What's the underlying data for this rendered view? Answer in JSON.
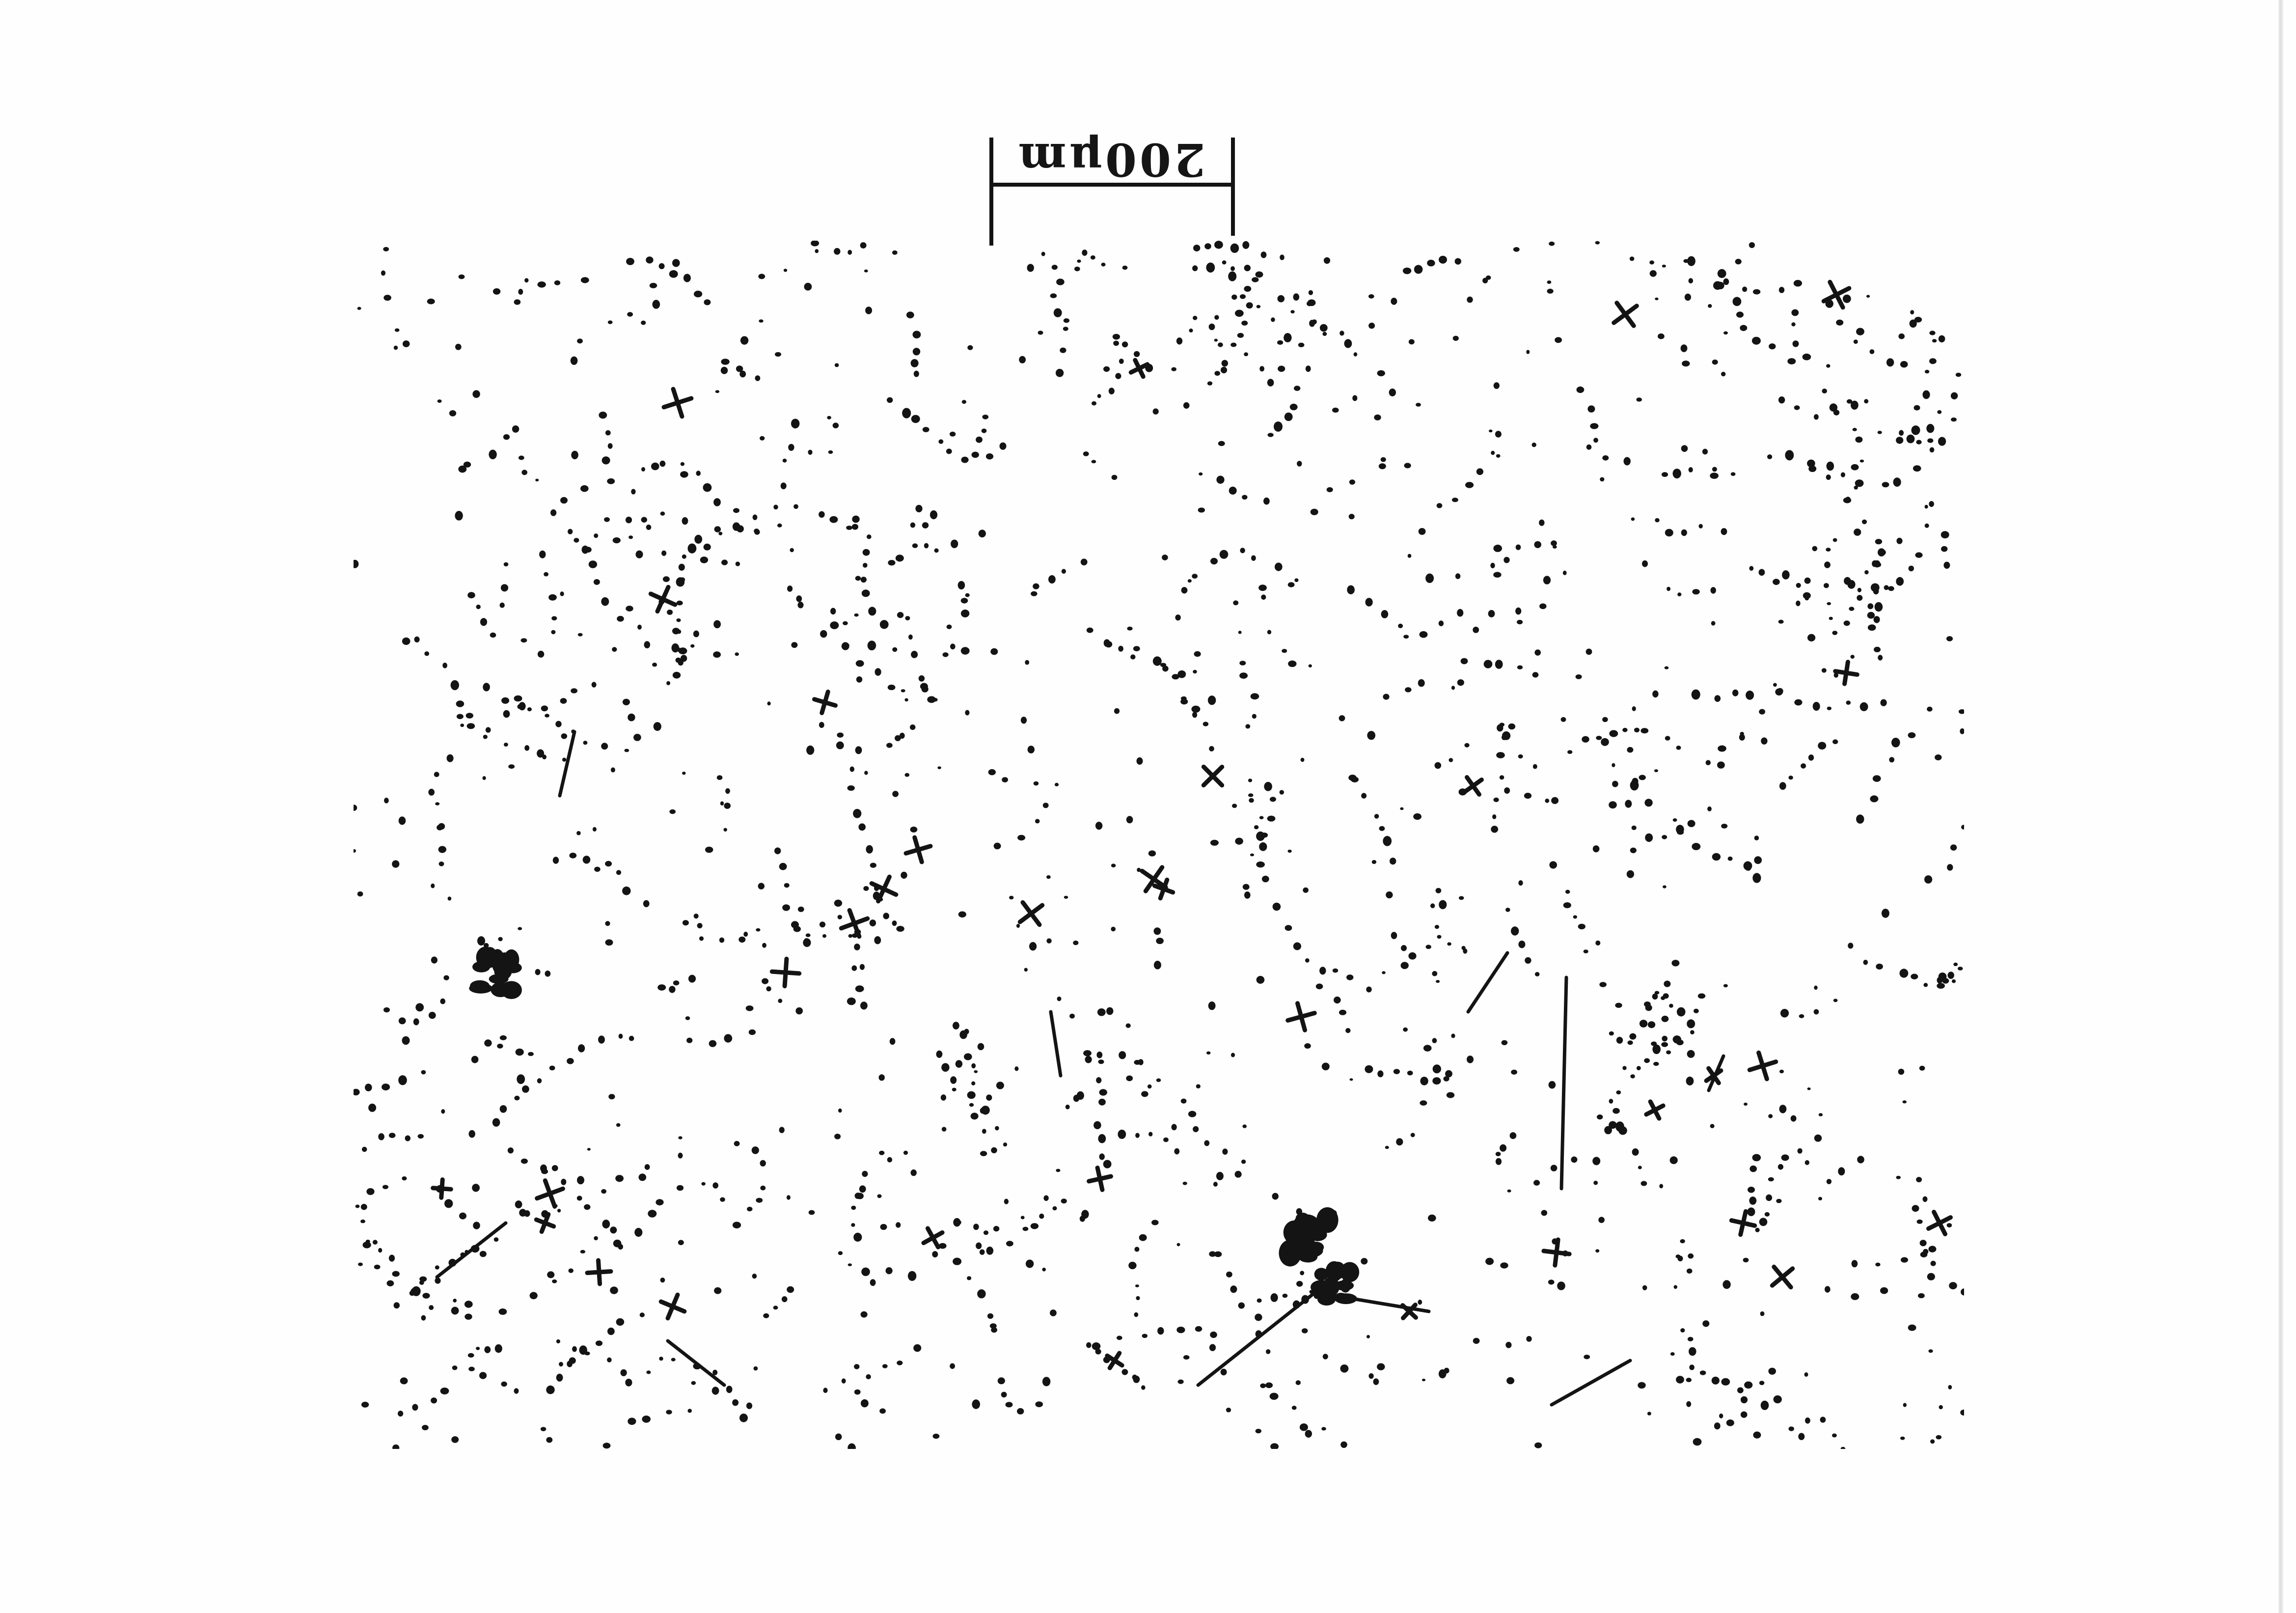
{
  "scale_bar": {
    "label": "200μm"
  },
  "colors": {
    "ink": "#141414",
    "paper": "#fefefe"
  }
}
